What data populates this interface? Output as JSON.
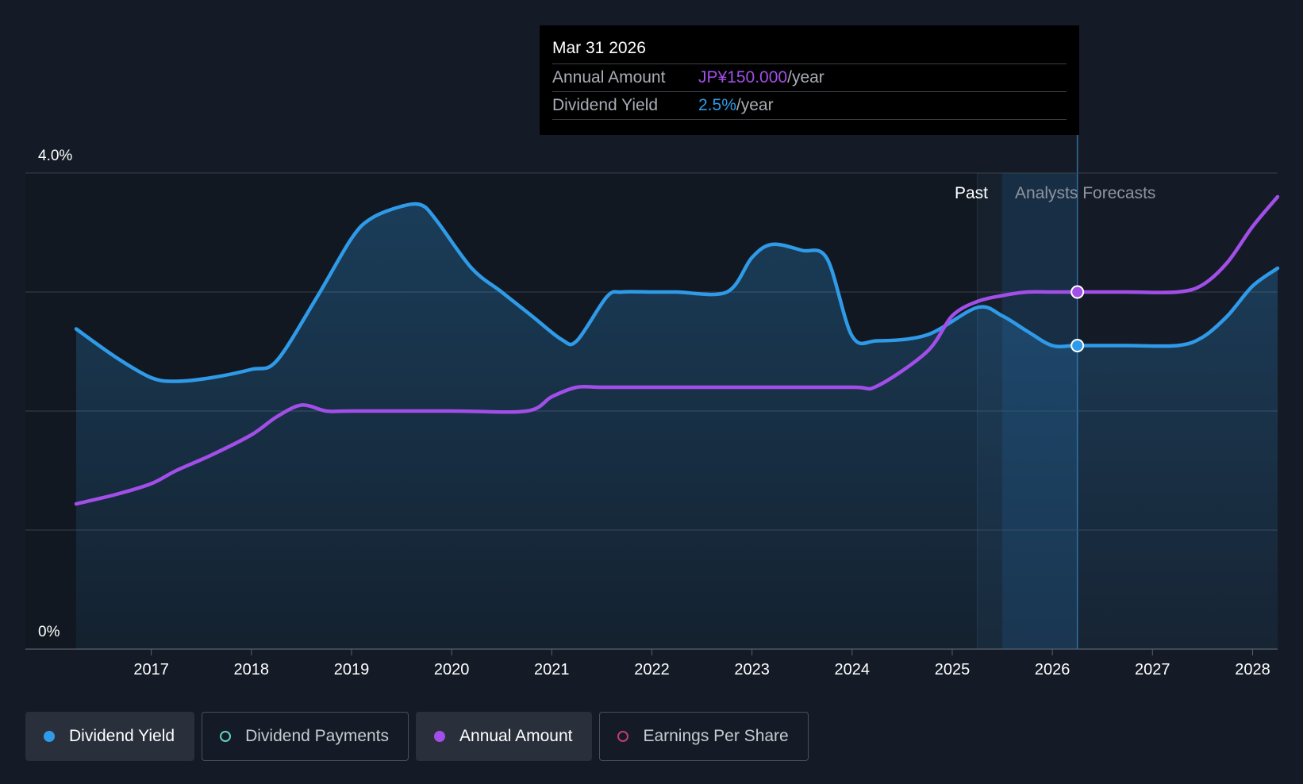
{
  "tooltip": {
    "date": "Mar 31 2026",
    "rows": [
      {
        "label": "Annual Amount",
        "value": "JP¥150.000",
        "suffix": "/year",
        "color": "#a24ee8"
      },
      {
        "label": "Dividend Yield",
        "value": "2.5%",
        "suffix": "/year",
        "color": "#2f9be8"
      }
    ]
  },
  "legend": [
    {
      "label": "Dividend Yield",
      "active": true,
      "filled": true,
      "color": "#2f9be8"
    },
    {
      "label": "Dividend Payments",
      "active": false,
      "filled": false,
      "color": "#5fd1c3"
    },
    {
      "label": "Annual Amount",
      "active": true,
      "filled": true,
      "color": "#a24ee8"
    },
    {
      "label": "Earnings Per Share",
      "active": false,
      "filled": false,
      "color": "#c23c74"
    }
  ],
  "regions": {
    "past": "Past",
    "forecast": "Analysts Forecasts"
  },
  "chart_data": {
    "type": "line",
    "y_tick_labels": [
      "4.0%",
      "0%"
    ],
    "ylim": [
      0,
      4.0
    ],
    "xlim": [
      2016.25,
      2028.25
    ],
    "x_ticks": [
      2017,
      2018,
      2019,
      2020,
      2021,
      2022,
      2023,
      2024,
      2025,
      2026,
      2027,
      2028
    ],
    "x_tick_labels": [
      "2017",
      "2018",
      "2019",
      "2020",
      "2021",
      "2022",
      "2023",
      "2024",
      "2025",
      "2026",
      "2027",
      "2028"
    ],
    "grid": true,
    "past_region": [
      2025.25,
      2025.5
    ],
    "forecast_shaded_until": 2026.25,
    "highlight_x": 2026.25,
    "series": [
      {
        "name": "Dividend Yield",
        "color": "#2f9be8",
        "area": true,
        "points": [
          [
            2016.25,
            2.69
          ],
          [
            2016.65,
            2.45
          ],
          [
            2017.0,
            2.28
          ],
          [
            2017.25,
            2.25
          ],
          [
            2017.6,
            2.28
          ],
          [
            2018.0,
            2.35
          ],
          [
            2018.25,
            2.42
          ],
          [
            2018.65,
            2.95
          ],
          [
            2019.0,
            3.45
          ],
          [
            2019.2,
            3.62
          ],
          [
            2019.5,
            3.72
          ],
          [
            2019.7,
            3.73
          ],
          [
            2019.85,
            3.6
          ],
          [
            2020.2,
            3.2
          ],
          [
            2020.5,
            3.0
          ],
          [
            2020.8,
            2.8
          ],
          [
            2021.1,
            2.6
          ],
          [
            2021.25,
            2.59
          ],
          [
            2021.55,
            2.96
          ],
          [
            2021.7,
            3.0
          ],
          [
            2022.0,
            3.0
          ],
          [
            2022.25,
            3.0
          ],
          [
            2022.75,
            3.0
          ],
          [
            2023.0,
            3.29
          ],
          [
            2023.2,
            3.4
          ],
          [
            2023.5,
            3.35
          ],
          [
            2023.75,
            3.28
          ],
          [
            2024.0,
            2.63
          ],
          [
            2024.25,
            2.59
          ],
          [
            2024.75,
            2.64
          ],
          [
            2025.25,
            2.87
          ],
          [
            2025.5,
            2.8
          ],
          [
            2025.75,
            2.67
          ],
          [
            2026.0,
            2.55
          ],
          [
            2026.25,
            2.55
          ],
          [
            2026.75,
            2.55
          ],
          [
            2027.25,
            2.55
          ],
          [
            2027.5,
            2.62
          ],
          [
            2027.75,
            2.8
          ],
          [
            2028.0,
            3.05
          ],
          [
            2028.25,
            3.2
          ]
        ]
      },
      {
        "name": "Annual Amount",
        "color": "#a24ee8",
        "area": false,
        "points": [
          [
            2016.25,
            1.22
          ],
          [
            2016.65,
            1.3
          ],
          [
            2017.0,
            1.39
          ],
          [
            2017.25,
            1.5
          ],
          [
            2017.6,
            1.63
          ],
          [
            2018.0,
            1.8
          ],
          [
            2018.25,
            1.95
          ],
          [
            2018.5,
            2.05
          ],
          [
            2018.75,
            2.0
          ],
          [
            2019.0,
            2.0
          ],
          [
            2020.0,
            2.0
          ],
          [
            2020.75,
            2.0
          ],
          [
            2021.0,
            2.12
          ],
          [
            2021.25,
            2.2
          ],
          [
            2021.5,
            2.2
          ],
          [
            2022.0,
            2.2
          ],
          [
            2023.0,
            2.2
          ],
          [
            2024.0,
            2.2
          ],
          [
            2024.25,
            2.21
          ],
          [
            2024.75,
            2.5
          ],
          [
            2025.0,
            2.8
          ],
          [
            2025.25,
            2.92
          ],
          [
            2025.5,
            2.97
          ],
          [
            2025.75,
            3.0
          ],
          [
            2026.0,
            3.0
          ],
          [
            2026.25,
            3.0
          ],
          [
            2026.75,
            3.0
          ],
          [
            2027.25,
            3.0
          ],
          [
            2027.5,
            3.06
          ],
          [
            2027.75,
            3.25
          ],
          [
            2028.0,
            3.55
          ],
          [
            2028.25,
            3.8
          ]
        ]
      }
    ]
  }
}
